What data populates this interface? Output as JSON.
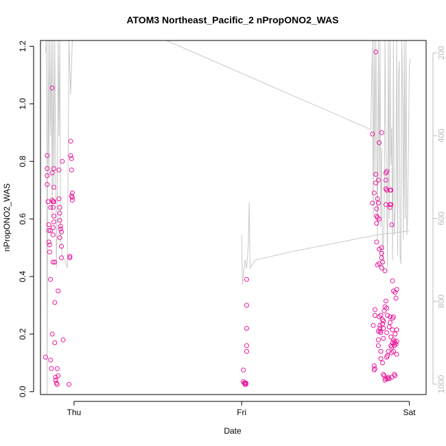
{
  "chart_data": {
    "type": "scatter",
    "title": "ATOM3 Northeast_Pacific_2 nPropONO2_WAS",
    "xlabel": "Date",
    "ylabel": "nPropONO2_WAS",
    "x_ticks": [
      {
        "label": "Thu",
        "value": 1.0
      },
      {
        "label": "Fri",
        "value": 2.0
      },
      {
        "label": "Sat",
        "value": 3.0
      }
    ],
    "xlim": [
      0.8,
      3.1
    ],
    "ylim": [
      -0.01,
      1.22
    ],
    "y_ticks": [
      0.0,
      0.2,
      0.4,
      0.6,
      0.8,
      1.0,
      1.2
    ],
    "y2_ticks": [
      200,
      400,
      600,
      800,
      1000
    ],
    "y2lim": [
      1025,
      170
    ],
    "colors": {
      "points": "#e8159a",
      "profile": "#c8c8c8",
      "right_axis": "#bbbbbb"
    },
    "series": [
      {
        "points": [
          [
            0.83,
            0.12
          ],
          [
            0.84,
            0.82
          ],
          [
            0.84,
            0.775
          ],
          [
            0.84,
            0.75
          ],
          [
            0.84,
            0.72
          ],
          [
            0.845,
            0.66
          ],
          [
            0.85,
            0.58
          ],
          [
            0.85,
            0.56
          ],
          [
            0.85,
            0.52
          ],
          [
            0.855,
            0.51
          ],
          [
            0.855,
            0.485
          ],
          [
            0.86,
            0.64
          ],
          [
            0.86,
            0.56
          ],
          [
            0.86,
            0.39
          ],
          [
            0.86,
            0.11
          ],
          [
            0.865,
            0.08
          ],
          [
            0.87,
            0.2
          ],
          [
            0.87,
            1.055
          ],
          [
            0.87,
            0.76
          ],
          [
            0.87,
            0.665
          ],
          [
            0.875,
            0.66
          ],
          [
            0.875,
            0.64
          ],
          [
            0.875,
            0.57
          ],
          [
            0.875,
            0.545
          ],
          [
            0.875,
            0.45
          ],
          [
            0.88,
            0.775
          ],
          [
            0.88,
            0.71
          ],
          [
            0.88,
            0.66
          ],
          [
            0.88,
            0.61
          ],
          [
            0.88,
            0.59
          ],
          [
            0.885,
            0.45
          ],
          [
            0.885,
            0.31
          ],
          [
            0.885,
            0.17
          ],
          [
            0.89,
            0.05
          ],
          [
            0.89,
            0.04
          ],
          [
            0.895,
            0.03
          ],
          [
            0.9,
            0.025
          ],
          [
            0.9,
            0.08
          ],
          [
            0.905,
            0.055
          ],
          [
            0.905,
            0.35
          ],
          [
            0.91,
            0.77
          ],
          [
            0.91,
            0.67
          ],
          [
            0.915,
            0.64
          ],
          [
            0.915,
            0.62
          ],
          [
            0.915,
            0.595
          ],
          [
            0.915,
            0.535
          ],
          [
            0.92,
            0.575
          ],
          [
            0.92,
            0.565
          ],
          [
            0.925,
            0.555
          ],
          [
            0.925,
            0.505
          ],
          [
            0.925,
            0.465
          ],
          [
            0.93,
            0.8
          ],
          [
            0.935,
            0.18
          ],
          [
            0.97,
            0.025
          ],
          [
            0.975,
            0.47
          ],
          [
            0.975,
            0.465
          ],
          [
            0.98,
            0.87
          ],
          [
            0.98,
            0.82
          ],
          [
            0.985,
            0.81
          ],
          [
            0.985,
            0.77
          ],
          [
            0.985,
            0.68
          ],
          [
            0.99,
            0.675
          ],
          [
            0.99,
            0.69
          ],
          [
            0.99,
            0.665
          ],
          [
            2.01,
            0.075
          ],
          [
            2.01,
            0.035
          ],
          [
            2.015,
            0.03
          ],
          [
            2.02,
            0.03
          ],
          [
            2.02,
            0.025
          ],
          [
            2.025,
            0.025
          ],
          [
            2.025,
            0.03
          ],
          [
            2.03,
            0.39
          ],
          [
            2.03,
            0.3
          ],
          [
            2.03,
            0.22
          ],
          [
            2.03,
            0.16
          ],
          [
            2.03,
            0.14
          ],
          [
            2.78,
            0.895
          ],
          [
            2.78,
            0.655
          ],
          [
            2.785,
            0.23
          ],
          [
            2.79,
            0.69
          ],
          [
            2.79,
            0.09
          ],
          [
            2.79,
            0.075
          ],
          [
            2.795,
            0.08
          ],
          [
            2.795,
            0.265
          ],
          [
            2.795,
            0.285
          ],
          [
            2.8,
            1.18
          ],
          [
            2.8,
            0.755
          ],
          [
            2.8,
            0.725
          ],
          [
            2.805,
            0.635
          ],
          [
            2.805,
            0.61
          ],
          [
            2.805,
            0.585
          ],
          [
            2.805,
            0.52
          ],
          [
            2.81,
            0.67
          ],
          [
            2.81,
            0.605
          ],
          [
            2.81,
            0.44
          ],
          [
            2.815,
            0.655
          ],
          [
            2.815,
            0.735
          ],
          [
            2.815,
            0.21
          ],
          [
            2.815,
            0.18
          ],
          [
            2.815,
            0.16
          ],
          [
            2.82,
            0.865
          ],
          [
            2.82,
            0.6
          ],
          [
            2.82,
            0.495
          ],
          [
            2.82,
            0.445
          ],
          [
            2.82,
            0.26
          ],
          [
            2.825,
            0.23
          ],
          [
            2.825,
            0.22
          ],
          [
            2.825,
            0.21
          ],
          [
            2.83,
            0.205
          ],
          [
            2.83,
            0.14
          ],
          [
            2.83,
            0.115
          ],
          [
            2.83,
            0.265
          ],
          [
            2.835,
            0.9
          ],
          [
            2.835,
            0.5
          ],
          [
            2.835,
            0.48
          ],
          [
            2.835,
            0.465
          ],
          [
            2.835,
            0.43
          ],
          [
            2.84,
            0.45
          ],
          [
            2.84,
            0.25
          ],
          [
            2.84,
            0.235
          ],
          [
            2.84,
            0.1
          ],
          [
            2.845,
            0.245
          ],
          [
            2.845,
            0.22
          ],
          [
            2.845,
            0.185
          ],
          [
            2.845,
            0.06
          ],
          [
            2.85,
            0.28
          ],
          [
            2.85,
            0.055
          ],
          [
            2.855,
            0.42
          ],
          [
            2.855,
            0.295
          ],
          [
            2.855,
            0.04
          ],
          [
            2.86,
            0.76
          ],
          [
            2.86,
            0.735
          ],
          [
            2.86,
            0.705
          ],
          [
            2.86,
            0.65
          ],
          [
            2.86,
            0.315
          ],
          [
            2.86,
            0.045
          ],
          [
            2.865,
            0.765
          ],
          [
            2.865,
            0.7
          ],
          [
            2.865,
            0.29
          ],
          [
            2.865,
            0.205
          ],
          [
            2.865,
            0.12
          ],
          [
            2.87,
            0.265
          ],
          [
            2.87,
            0.125
          ],
          [
            2.87,
            0.045
          ],
          [
            2.875,
            0.14
          ],
          [
            2.875,
            0.05
          ],
          [
            2.88,
            0.225
          ],
          [
            2.88,
            0.045
          ],
          [
            2.885,
            0.7
          ],
          [
            2.885,
            0.65
          ],
          [
            2.885,
            0.64
          ],
          [
            2.885,
            0.26
          ],
          [
            2.885,
            0.24
          ],
          [
            2.89,
            0.7
          ],
          [
            2.89,
            0.65
          ],
          [
            2.89,
            0.19
          ],
          [
            2.89,
            0.16
          ],
          [
            2.895,
            0.58
          ],
          [
            2.895,
            0.155
          ],
          [
            2.895,
            0.135
          ],
          [
            2.895,
            0.05
          ],
          [
            2.9,
            0.385
          ],
          [
            2.9,
            0.255
          ],
          [
            2.9,
            0.215
          ],
          [
            2.9,
            0.17
          ],
          [
            2.905,
            0.35
          ],
          [
            2.905,
            0.26
          ],
          [
            2.905,
            0.18
          ],
          [
            2.905,
            0.14
          ],
          [
            2.91,
            0.175
          ],
          [
            2.91,
            0.16
          ],
          [
            2.91,
            0.06
          ],
          [
            2.915,
            0.345
          ],
          [
            2.915,
            0.2
          ],
          [
            2.915,
            0.17
          ],
          [
            2.915,
            0.055
          ],
          [
            2.92,
            0.325
          ],
          [
            2.92,
            0.165
          ],
          [
            2.925,
            0.355
          ],
          [
            2.925,
            0.215
          ],
          [
            2.925,
            0.175
          ],
          [
            2.925,
            0.13
          ]
        ]
      },
      {
        "line": [
          [
            0.83,
            200
          ],
          [
            0.835,
            170
          ],
          [
            0.84,
            1025
          ],
          [
            0.845,
            170
          ],
          [
            0.85,
            500
          ],
          [
            0.855,
            170
          ],
          [
            0.86,
            400
          ],
          [
            0.865,
            170
          ],
          [
            0.87,
            600
          ],
          [
            0.875,
            170
          ],
          [
            0.88,
            520
          ],
          [
            0.885,
            170
          ],
          [
            0.89,
            450
          ],
          [
            0.895,
            720
          ],
          [
            0.9,
            600
          ],
          [
            0.905,
            170
          ],
          [
            0.91,
            400
          ],
          [
            0.915,
            170
          ],
          [
            0.92,
            650
          ],
          [
            0.93,
            690
          ],
          [
            0.945,
            700
          ],
          [
            0.96,
            720
          ],
          [
            0.97,
            170
          ],
          [
            0.98,
            300
          ],
          [
            0.99,
            170
          ],
          [
            1.55,
            170
          ],
          [
            2.77,
            385
          ],
          [
            2.78,
            170
          ],
          [
            2.785,
            600
          ],
          [
            2.79,
            170
          ],
          [
            2.795,
            500
          ],
          [
            2.8,
            170
          ],
          [
            2.81,
            650
          ],
          [
            2.815,
            170
          ],
          [
            2.82,
            500
          ],
          [
            2.825,
            170
          ],
          [
            2.83,
            620
          ],
          [
            2.835,
            430
          ],
          [
            2.84,
            720
          ],
          [
            2.85,
            600
          ],
          [
            2.855,
            170
          ],
          [
            2.86,
            400
          ],
          [
            2.87,
            720
          ],
          [
            2.875,
            170
          ],
          [
            2.88,
            600
          ],
          [
            2.885,
            170
          ],
          [
            2.89,
            470
          ],
          [
            2.895,
            380
          ],
          [
            2.9,
            700
          ],
          [
            2.905,
            170
          ],
          [
            2.91,
            640
          ],
          [
            2.92,
            550
          ],
          [
            2.925,
            170
          ],
          [
            2.93,
            690
          ],
          [
            2.935,
            260
          ],
          [
            2.94,
            220
          ],
          [
            2.945,
            690
          ],
          [
            2.95,
            710
          ],
          [
            2.955,
            170
          ],
          [
            2.96,
            300
          ],
          [
            2.965,
            650
          ],
          [
            2.97,
            170
          ],
          [
            2.975,
            600
          ],
          [
            2.98,
            170
          ],
          [
            2.985,
            640
          ],
          [
            2.99,
            600
          ],
          [
            3.0,
            230
          ],
          [
            3.005,
            215
          ],
          null,
          [
            2.0,
            640
          ],
          [
            2.005,
            760
          ],
          [
            2.02,
            700
          ],
          [
            2.03,
            720
          ],
          [
            2.04,
            660
          ],
          [
            2.045,
            560
          ],
          [
            2.05,
            720
          ],
          [
            2.08,
            700
          ],
          [
            2.3,
            680
          ],
          [
            2.8,
            640
          ],
          [
            3.0,
            630
          ]
        ]
      }
    ]
  }
}
